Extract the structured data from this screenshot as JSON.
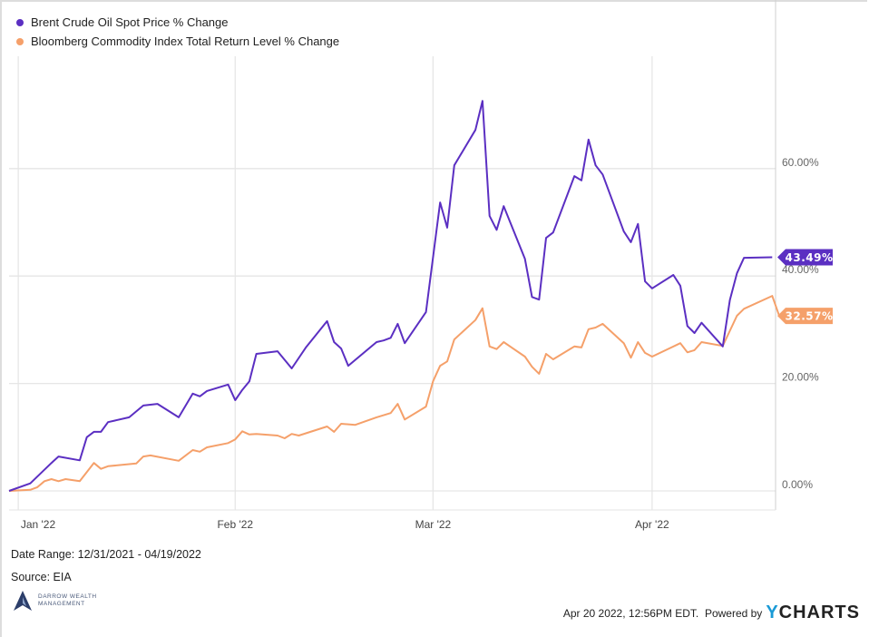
{
  "legend": [
    {
      "label": "Brent Crude Oil Spot Price % Change",
      "color": "#5b2fc2"
    },
    {
      "label": "Bloomberg Commodity Index Total Return Level % Change",
      "color": "#f5a06a"
    }
  ],
  "footer": {
    "date_range": "Date Range: 12/31/2021 - 04/19/2022",
    "source": "Source: EIA",
    "logo_line1": "DARROW WEALTH",
    "logo_line2": "MANAGEMENT",
    "timestamp": "Apr 20 2022, 12:56PM EDT.",
    "powered_by": "Powered by",
    "brand_y": "Y",
    "brand_rest": "CHARTS"
  },
  "chart_data": {
    "type": "line",
    "x_unit": "days since 12/31/2021",
    "xlim": [
      0,
      109
    ],
    "ylim": [
      -3.5,
      77
    ],
    "y_ticks": [
      0,
      20,
      40,
      60
    ],
    "y_tick_labels": [
      "0.00%",
      "20.00%",
      "40.00%",
      "60.00%"
    ],
    "x_ticks": [
      {
        "day": 1.3,
        "label": "Jan '22"
      },
      {
        "day": 32,
        "label": "Feb '22"
      },
      {
        "day": 60,
        "label": "Mar '22"
      },
      {
        "day": 91,
        "label": "Apr '22"
      }
    ],
    "grid": true,
    "series": [
      {
        "name": "Brent Crude Oil Spot Price % Change",
        "color": "#5b2fc2",
        "last_label": "43.49%",
        "points": [
          [
            0,
            0
          ],
          [
            3,
            1.4
          ],
          [
            6,
            5.2
          ],
          [
            7,
            6.4
          ],
          [
            10,
            5.7
          ],
          [
            11,
            10.0
          ],
          [
            12,
            11.0
          ],
          [
            13,
            11.0
          ],
          [
            14,
            12.8
          ],
          [
            17,
            13.7
          ],
          [
            19,
            15.9
          ],
          [
            21,
            16.2
          ],
          [
            24,
            13.7
          ],
          [
            26,
            18.1
          ],
          [
            27,
            17.6
          ],
          [
            28,
            18.6
          ],
          [
            31,
            19.8
          ],
          [
            32,
            16.9
          ],
          [
            33,
            18.8
          ],
          [
            34,
            20.4
          ],
          [
            35,
            25.5
          ],
          [
            38,
            26.0
          ],
          [
            40,
            22.8
          ],
          [
            42,
            26.7
          ],
          [
            45,
            31.6
          ],
          [
            46,
            27.7
          ],
          [
            47,
            26.5
          ],
          [
            48,
            23.3
          ],
          [
            52,
            27.7
          ],
          [
            53,
            28.0
          ],
          [
            54,
            28.5
          ],
          [
            55,
            31.1
          ],
          [
            56,
            27.5
          ],
          [
            59,
            33.3
          ],
          [
            61,
            53.7
          ],
          [
            62,
            49.0
          ],
          [
            63,
            60.6
          ],
          [
            66,
            67.2
          ],
          [
            67,
            72.6
          ],
          [
            68,
            51.2
          ],
          [
            69,
            48.6
          ],
          [
            70,
            53.0
          ],
          [
            73,
            43.2
          ],
          [
            74,
            36.1
          ],
          [
            75,
            35.6
          ],
          [
            76,
            47.1
          ],
          [
            77,
            48.1
          ],
          [
            80,
            58.6
          ],
          [
            81,
            57.8
          ],
          [
            82,
            65.4
          ],
          [
            83,
            60.6
          ],
          [
            84,
            58.9
          ],
          [
            87,
            48.3
          ],
          [
            88,
            46.3
          ],
          [
            89,
            49.7
          ],
          [
            90,
            39.0
          ],
          [
            91,
            37.7
          ],
          [
            94,
            40.2
          ],
          [
            95,
            38.2
          ],
          [
            96,
            30.7
          ],
          [
            97,
            29.4
          ],
          [
            98,
            31.3
          ],
          [
            101,
            26.9
          ],
          [
            102,
            35.5
          ],
          [
            103,
            40.5
          ],
          [
            104,
            43.4
          ],
          [
            108,
            43.49
          ]
        ]
      },
      {
        "name": "Bloomberg Commodity Index Total Return Level % Change",
        "color": "#f5a06a",
        "last_label": "32.57%",
        "points": [
          [
            0,
            0
          ],
          [
            3,
            0.2
          ],
          [
            4,
            0.7
          ],
          [
            5,
            1.8
          ],
          [
            6,
            2.2
          ],
          [
            7,
            1.8
          ],
          [
            8,
            2.2
          ],
          [
            10,
            1.8
          ],
          [
            12,
            5.2
          ],
          [
            13,
            4.1
          ],
          [
            14,
            4.6
          ],
          [
            18,
            5.1
          ],
          [
            19,
            6.4
          ],
          [
            20,
            6.6
          ],
          [
            24,
            5.6
          ],
          [
            26,
            7.6
          ],
          [
            27,
            7.3
          ],
          [
            28,
            8.1
          ],
          [
            31,
            8.9
          ],
          [
            32,
            9.6
          ],
          [
            33,
            11.1
          ],
          [
            34,
            10.5
          ],
          [
            35,
            10.6
          ],
          [
            38,
            10.3
          ],
          [
            39,
            9.8
          ],
          [
            40,
            10.6
          ],
          [
            41,
            10.3
          ],
          [
            45,
            12.0
          ],
          [
            46,
            11.0
          ],
          [
            47,
            12.5
          ],
          [
            49,
            12.3
          ],
          [
            52,
            13.7
          ],
          [
            54,
            14.5
          ],
          [
            55,
            16.2
          ],
          [
            56,
            13.3
          ],
          [
            59,
            15.7
          ],
          [
            60,
            20.4
          ],
          [
            61,
            23.3
          ],
          [
            62,
            24.1
          ],
          [
            63,
            28.2
          ],
          [
            66,
            31.8
          ],
          [
            67,
            34.0
          ],
          [
            68,
            26.9
          ],
          [
            69,
            26.4
          ],
          [
            70,
            27.7
          ],
          [
            73,
            25.0
          ],
          [
            74,
            23.1
          ],
          [
            75,
            21.8
          ],
          [
            76,
            25.5
          ],
          [
            77,
            24.5
          ],
          [
            80,
            26.9
          ],
          [
            81,
            26.7
          ],
          [
            82,
            30.1
          ],
          [
            83,
            30.4
          ],
          [
            84,
            31.1
          ],
          [
            87,
            27.5
          ],
          [
            88,
            24.8
          ],
          [
            89,
            27.7
          ],
          [
            90,
            25.7
          ],
          [
            91,
            25.0
          ],
          [
            95,
            27.5
          ],
          [
            96,
            25.8
          ],
          [
            97,
            26.2
          ],
          [
            98,
            27.7
          ],
          [
            101,
            27.0
          ],
          [
            103,
            32.6
          ],
          [
            104,
            33.9
          ],
          [
            108,
            36.3
          ],
          [
            109,
            32.57
          ]
        ]
      }
    ]
  }
}
